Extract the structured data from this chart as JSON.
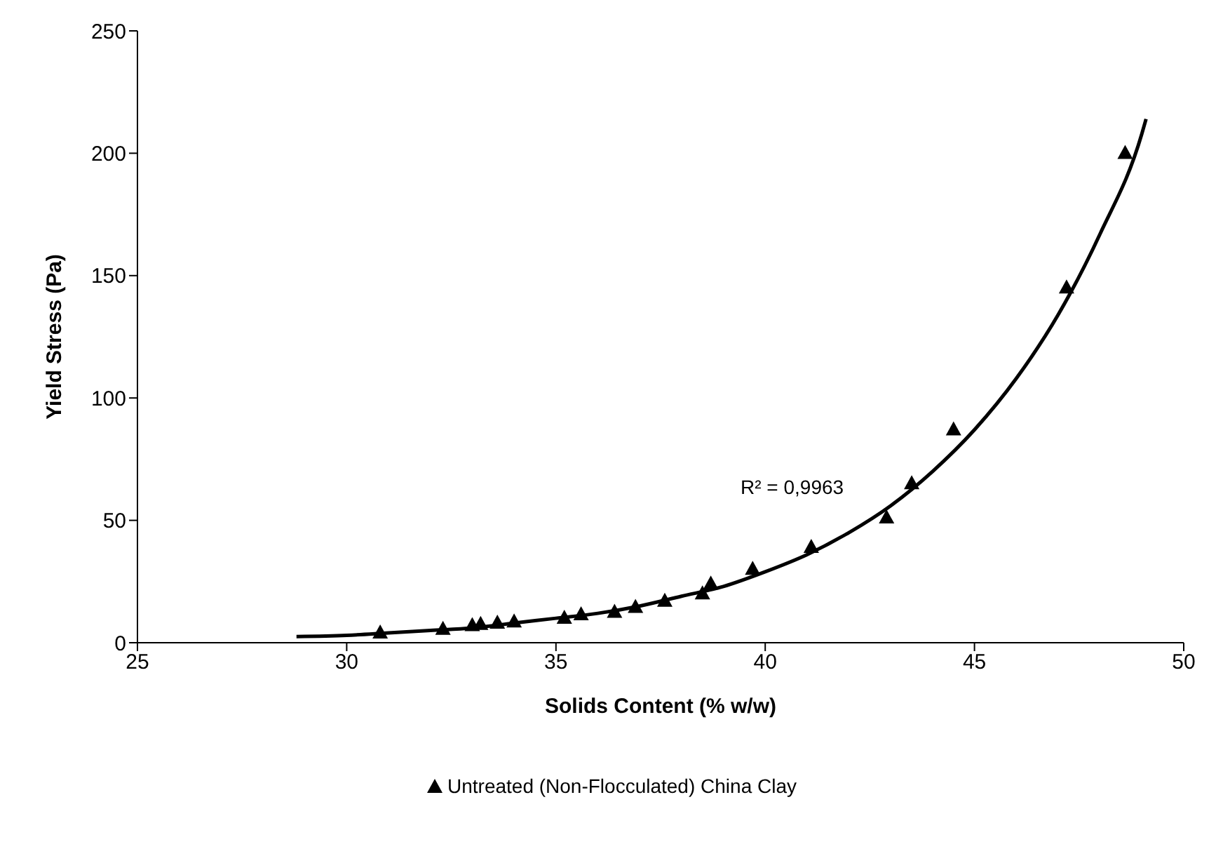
{
  "chart_data": {
    "type": "scatter",
    "xlabel": "Solids Content (% w/w)",
    "ylabel": "Yield Stress (Pa)",
    "xlim": [
      25,
      50
    ],
    "xticks": [
      25,
      30,
      35,
      40,
      45,
      50
    ],
    "ylim": [
      0,
      250
    ],
    "yticks": [
      0,
      50,
      100,
      150,
      200,
      250
    ],
    "grid": false,
    "legend": "bottom",
    "marker": "triangle",
    "annotations": [
      "R² = 0,9963"
    ],
    "series": [
      {
        "name": "Untreated (Non-Flocculated) China Clay",
        "color": "#000000",
        "x": [
          30.8,
          32.3,
          33.0,
          33.2,
          33.6,
          34.0,
          35.2,
          35.6,
          36.4,
          36.9,
          37.6,
          38.5,
          38.7,
          39.7,
          41.1,
          42.9,
          43.5,
          44.5,
          47.2,
          48.6
        ],
        "values": [
          4,
          5.5,
          7,
          7.5,
          8,
          8.5,
          10,
          11.5,
          12.5,
          14.5,
          17,
          20,
          24,
          30,
          39,
          51,
          65,
          87,
          145,
          200
        ]
      },
      {
        "type": "line",
        "color": "#000000",
        "marker": "none",
        "x": [
          28.8,
          30,
          31,
          32,
          33,
          34,
          35,
          36,
          37,
          38,
          39,
          40,
          41,
          42,
          43,
          44,
          45,
          46,
          47,
          48,
          49,
          49.1
        ],
        "values": [
          2.5,
          3,
          4,
          5,
          6,
          8,
          10,
          12,
          15,
          19,
          23,
          29,
          36,
          45,
          56,
          70,
          87,
          108,
          134,
          167,
          208,
          214
        ]
      }
    ]
  }
}
